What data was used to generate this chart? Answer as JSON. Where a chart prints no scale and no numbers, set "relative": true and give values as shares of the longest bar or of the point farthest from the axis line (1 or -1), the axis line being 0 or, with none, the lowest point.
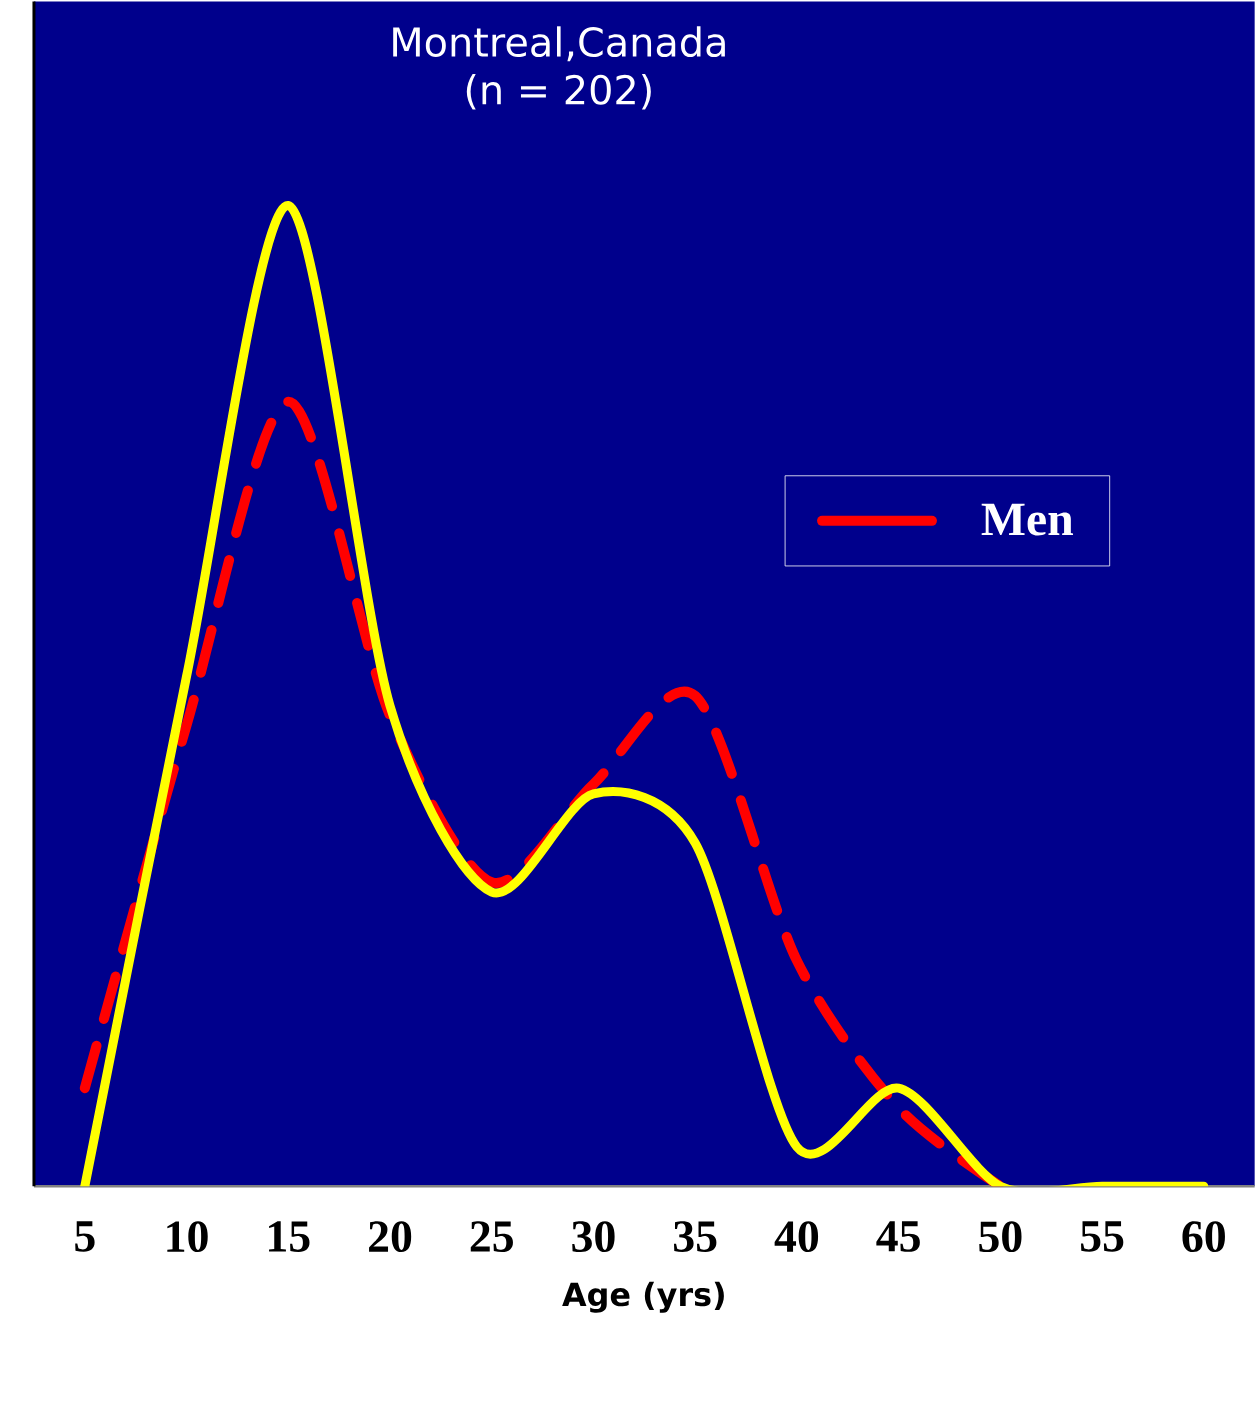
{
  "chart_data": {
    "type": "line",
    "title": "Montreal,Canada",
    "subtitle": "(n = 202)",
    "xlabel": "Age (yrs)",
    "relative": true,
    "categories": [
      "5",
      "10",
      "15",
      "20",
      "25",
      "30",
      "35",
      "40",
      "45",
      "50",
      "55",
      "60"
    ],
    "series": [
      {
        "name": "Men",
        "color": "#ff0000",
        "line_style": "dashed",
        "values": [
          0.1,
          0.47,
          0.8,
          0.48,
          0.31,
          0.41,
          0.5,
          0.23,
          0.08,
          0,
          null,
          null
        ]
      },
      {
        "color": "#ffff00",
        "line_style": "solid",
        "values": [
          0,
          0.52,
          1,
          0.49,
          0.3,
          0.4,
          0.35,
          0.04,
          0.1,
          0,
          0,
          0
        ]
      }
    ],
    "legend": "top right",
    "grid": false
  }
}
